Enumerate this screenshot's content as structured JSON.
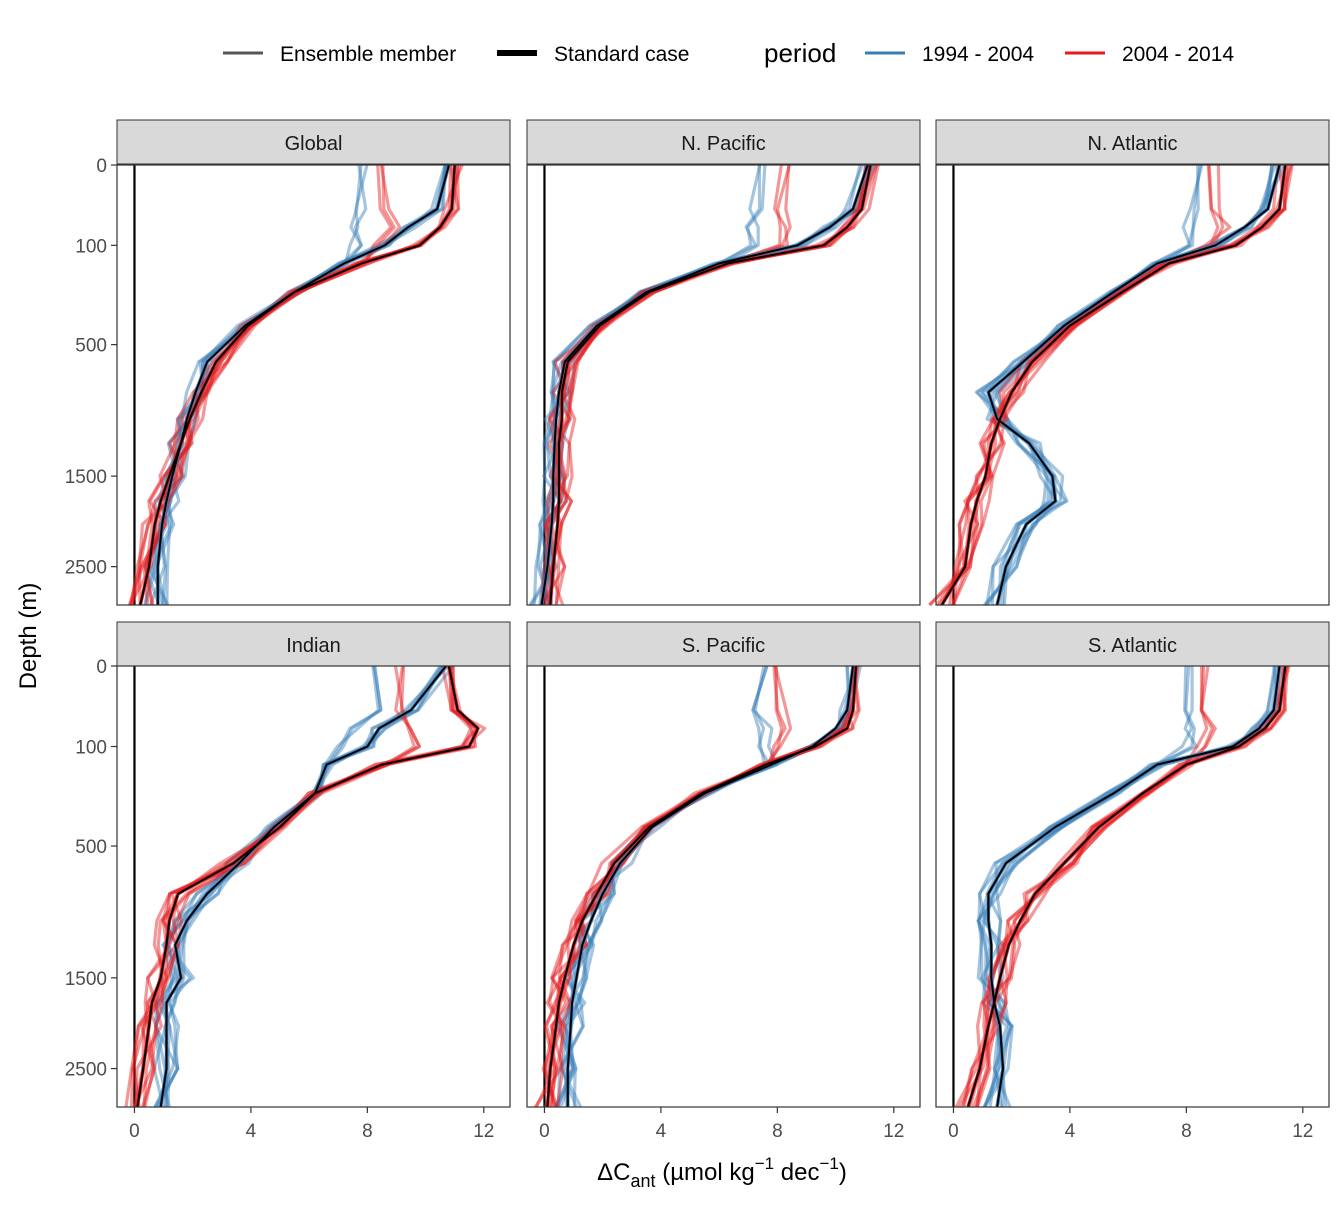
{
  "legend": {
    "linetype_items": [
      {
        "label": "Ensemble member",
        "width": 3,
        "color": "#555555"
      },
      {
        "label": "Standard case",
        "width": 6,
        "color": "#000000"
      }
    ],
    "period_title": "period",
    "period_items": [
      {
        "label": "1994 - 2004",
        "color": "#377eb8"
      },
      {
        "label": "2004 - 2014",
        "color": "#e41a1c"
      }
    ]
  },
  "axes": {
    "y_title": "Depth (m)",
    "x_title_main": "ΔC",
    "x_title_sub": "ant",
    "x_title_rest": " (µmol kg",
    "x_title_sup1": "−1",
    "x_title_mid": " dec",
    "x_title_sup2": "−1",
    "x_title_end": ")"
  },
  "chart_data": {
    "type": "line",
    "facet_order": [
      "Global",
      "N. Pacific",
      "N. Atlantic",
      "Indian",
      "S. Pacific",
      "S. Atlantic"
    ],
    "x_ticks": [
      0,
      4,
      8,
      12
    ],
    "xlim": [
      -0.6,
      12.9
    ],
    "y_ticks": [
      0,
      100,
      500,
      1500,
      2500
    ],
    "y_scale": "sqrt, reversed",
    "ylim": [
      3000,
      0
    ],
    "depth_levels": [
      0,
      30,
      60,
      100,
      150,
      250,
      400,
      600,
      800,
      1000,
      1200,
      1500,
      1750,
      2000,
      2500,
      3000
    ],
    "colors": {
      "1994 - 2004": "#377eb8",
      "2004 - 2014": "#e41a1c"
    },
    "facets": [
      {
        "name": "Global",
        "blue": [
          10.8,
          10.4,
          9.4,
          8.6,
          7.2,
          5.5,
          3.8,
          2.5,
          2.1,
          1.8,
          1.6,
          1.3,
          1.1,
          0.95,
          0.8,
          0.8
        ],
        "red": [
          11.0,
          10.9,
          10.5,
          9.8,
          7.8,
          5.5,
          3.9,
          2.8,
          2.3,
          1.9,
          1.6,
          1.2,
          0.9,
          0.7,
          0.5,
          0.2
        ],
        "blue_top": [
          7.8,
          7.7,
          7.5,
          7.6
        ],
        "red_top": [
          8.6,
          8.5,
          9.0,
          8.4
        ]
      },
      {
        "name": "N. Pacific",
        "blue": [
          11.1,
          10.6,
          9.8,
          8.7,
          6.0,
          3.5,
          1.8,
          0.7,
          0.5,
          0.4,
          0.35,
          0.3,
          0.3,
          0.25,
          0.1,
          -0.1
        ],
        "red": [
          11.2,
          10.9,
          10.4,
          9.6,
          6.3,
          3.6,
          1.9,
          0.8,
          0.6,
          0.6,
          0.5,
          0.5,
          0.5,
          0.45,
          0.3,
          0.2
        ],
        "blue_top": [
          7.4,
          7.3,
          7.1,
          7.3
        ],
        "red_top": [
          8.2,
          8.1,
          8.3,
          8.2
        ]
      },
      {
        "name": "N. Atlantic",
        "blue": [
          11.2,
          10.8,
          10.0,
          9.0,
          7.0,
          5.5,
          3.8,
          2.4,
          1.2,
          1.5,
          2.6,
          3.4,
          3.5,
          2.5,
          1.8,
          1.5
        ],
        "red": [
          11.4,
          11.2,
          10.6,
          9.7,
          7.4,
          5.8,
          4.0,
          2.7,
          2.0,
          1.6,
          1.3,
          1.1,
          0.8,
          0.6,
          0.4,
          -0.4
        ],
        "blue_top": [
          8.3,
          8.2,
          8.1,
          8.3
        ],
        "red_top": [
          8.9,
          9.1,
          9.3,
          8.8
        ]
      },
      {
        "name": "Indian",
        "blue": [
          10.7,
          9.5,
          8.4,
          8.0,
          6.6,
          6.2,
          4.8,
          3.6,
          2.5,
          1.8,
          1.4,
          1.6,
          1.1,
          1.1,
          1.1,
          0.9
        ],
        "red": [
          10.8,
          11.1,
          11.8,
          11.5,
          8.5,
          6.2,
          5.0,
          3.4,
          1.5,
          1.2,
          1.1,
          0.9,
          0.6,
          0.5,
          0.3,
          0.1
        ],
        "blue_top": [
          8.2,
          8.3,
          7.6,
          7.0
        ],
        "red_top": [
          9.1,
          9.2,
          9.5,
          9.6
        ]
      },
      {
        "name": "S. Pacific",
        "blue": [
          10.6,
          10.4,
          10.0,
          9.2,
          7.8,
          5.5,
          3.7,
          2.6,
          2.0,
          1.6,
          1.3,
          1.1,
          0.95,
          0.9,
          0.8,
          0.8
        ],
        "red": [
          10.7,
          10.6,
          10.4,
          9.3,
          7.6,
          5.4,
          3.6,
          2.4,
          1.8,
          1.3,
          1.0,
          0.7,
          0.5,
          0.4,
          0.2,
          0.1
        ],
        "blue_top": [
          7.5,
          7.4,
          7.6,
          7.5
        ],
        "red_top": [
          8.0,
          8.1,
          8.3,
          8.0
        ]
      },
      {
        "name": "S. Atlantic",
        "blue": [
          11.2,
          11.0,
          10.5,
          9.6,
          7.0,
          5.5,
          3.5,
          1.8,
          1.2,
          1.2,
          1.3,
          1.3,
          1.4,
          1.6,
          1.7,
          1.5
        ],
        "red": [
          11.4,
          11.2,
          10.7,
          9.8,
          8.0,
          6.5,
          5.0,
          3.8,
          2.8,
          2.3,
          1.9,
          1.6,
          1.4,
          1.2,
          0.9,
          0.5
        ],
        "blue_top": [
          8.1,
          8.0,
          8.2,
          8.1
        ],
        "red_top": [
          8.6,
          8.7,
          8.8,
          8.6
        ]
      }
    ]
  }
}
